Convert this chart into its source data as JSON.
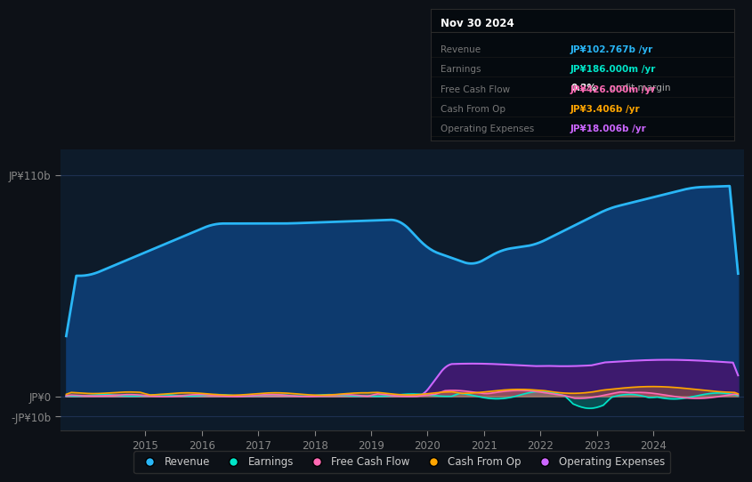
{
  "bg_color": "#0d1117",
  "plot_bg_color": "#0d1b2a",
  "grid_color": "#1e3050",
  "y_ticks_labels": [
    "JP¥110b",
    "JP¥0",
    "-JP¥10b"
  ],
  "y_tick_vals": [
    110000000000,
    0,
    -10000000000
  ],
  "x_ticks": [
    2015,
    2016,
    2017,
    2018,
    2019,
    2020,
    2021,
    2022,
    2023,
    2024
  ],
  "ylim_min": -17000000000,
  "ylim_max": 123000000000,
  "xlim_start": 2013.5,
  "xlim_end": 2025.6,
  "series": {
    "Revenue": {
      "line_color": "#29b6f6",
      "fill_color": "#0d3a6e",
      "fill_alpha": 1.0,
      "line_width": 2.0
    },
    "Earnings": {
      "line_color": "#00e5c8",
      "fill_alpha": 0.25,
      "line_width": 1.2
    },
    "FreeCashFlow": {
      "line_color": "#ff69b4",
      "fill_alpha": 0.25,
      "line_width": 1.2
    },
    "CashFromOp": {
      "line_color": "#ffa500",
      "fill_alpha": 0.25,
      "line_width": 1.2
    },
    "OperatingExpenses": {
      "line_color": "#cc66ff",
      "fill_color": "#3d1a6e",
      "fill_alpha": 1.0,
      "line_width": 1.5
    }
  },
  "legend_items": [
    {
      "label": "Revenue",
      "color": "#29b6f6"
    },
    {
      "label": "Earnings",
      "color": "#00e5c8"
    },
    {
      "label": "Free Cash Flow",
      "color": "#ff69b4"
    },
    {
      "label": "Cash From Op",
      "color": "#ffa500"
    },
    {
      "label": "Operating Expenses",
      "color": "#cc66ff"
    }
  ],
  "infobox": {
    "date": "Nov 30 2024",
    "rows": [
      {
        "label": "Revenue",
        "value": "JP¥102.767b /yr",
        "value_color": "#29b6f6",
        "has_sub": false
      },
      {
        "label": "Earnings",
        "value": "JP¥186.000m /yr",
        "value_color": "#00e5c8",
        "has_sub": true,
        "sub": "0.2% profit margin"
      },
      {
        "label": "Free Cash Flow",
        "value": "JP¥426.000m /yr",
        "value_color": "#ff69b4",
        "has_sub": false
      },
      {
        "label": "Cash From Op",
        "value": "JP¥3.406b /yr",
        "value_color": "#ffa500",
        "has_sub": false
      },
      {
        "label": "Operating Expenses",
        "value": "JP¥18.006b /yr",
        "value_color": "#cc66ff",
        "has_sub": false
      }
    ]
  }
}
